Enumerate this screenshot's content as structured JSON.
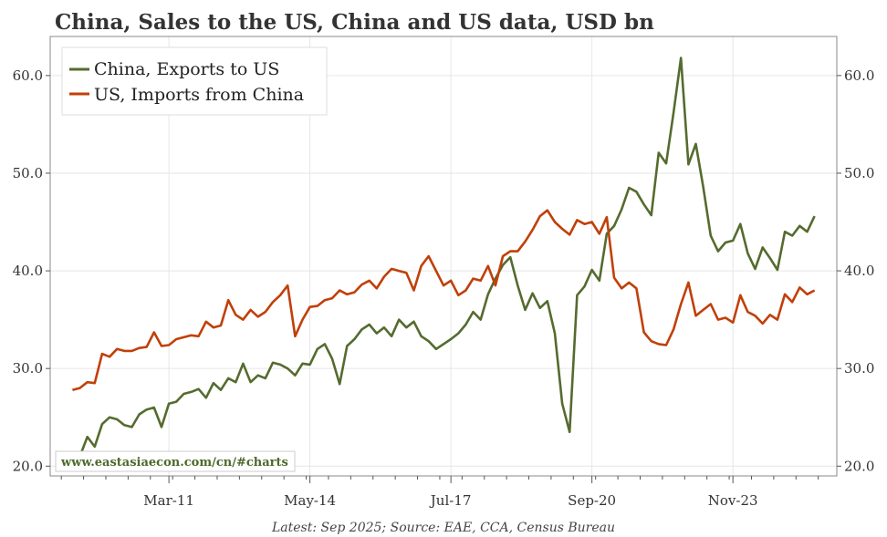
{
  "chart_data": {
    "type": "line",
    "title": "China, Sales to the US, China and US data, USD bn",
    "source": "Latest: Sep 2025; Source: EAE, CCA, Census Bureau",
    "watermark": "www.eastasiaecon.com/cn/#charts",
    "xlabel": "",
    "ylabel": "",
    "ylim": [
      19,
      64
    ],
    "y_ticks": [
      "20.0",
      "30.0",
      "40.0",
      "50.0",
      "60.0"
    ],
    "x_ticks": [
      "Mar-11",
      "May-14",
      "Jul-17",
      "Sep-20",
      "Nov-23"
    ],
    "x_range": [
      "2008-07",
      "2026-03"
    ],
    "legend_position": "top-left",
    "series": [
      {
        "name": "China, Exports to US",
        "color": "#556b2f",
        "points": [
          [
            "2009-01",
            19.8
          ],
          [
            "2009-03",
            21.0
          ],
          [
            "2009-05",
            23.0
          ],
          [
            "2009-07",
            22.0
          ],
          [
            "2009-09",
            24.3
          ],
          [
            "2009-11",
            25.0
          ],
          [
            "2010-01",
            24.8
          ],
          [
            "2010-03",
            24.2
          ],
          [
            "2010-05",
            24.0
          ],
          [
            "2010-07",
            25.3
          ],
          [
            "2010-09",
            25.8
          ],
          [
            "2010-11",
            26.0
          ],
          [
            "2011-01",
            24.0
          ],
          [
            "2011-03",
            26.4
          ],
          [
            "2011-05",
            26.6
          ],
          [
            "2011-07",
            27.4
          ],
          [
            "2011-09",
            27.6
          ],
          [
            "2011-11",
            27.9
          ],
          [
            "2012-01",
            27.0
          ],
          [
            "2012-03",
            28.5
          ],
          [
            "2012-05",
            27.8
          ],
          [
            "2012-07",
            29.0
          ],
          [
            "2012-09",
            28.6
          ],
          [
            "2012-11",
            30.5
          ],
          [
            "2013-01",
            28.6
          ],
          [
            "2013-03",
            29.3
          ],
          [
            "2013-05",
            29.0
          ],
          [
            "2013-07",
            30.6
          ],
          [
            "2013-09",
            30.4
          ],
          [
            "2013-11",
            30.0
          ],
          [
            "2014-01",
            29.3
          ],
          [
            "2014-03",
            30.5
          ],
          [
            "2014-05",
            30.4
          ],
          [
            "2014-07",
            32.0
          ],
          [
            "2014-09",
            32.5
          ],
          [
            "2014-11",
            31.0
          ],
          [
            "2015-01",
            28.4
          ],
          [
            "2015-03",
            32.3
          ],
          [
            "2015-05",
            33.0
          ],
          [
            "2015-07",
            34.0
          ],
          [
            "2015-09",
            34.5
          ],
          [
            "2015-11",
            33.6
          ],
          [
            "2016-01",
            34.2
          ],
          [
            "2016-03",
            33.3
          ],
          [
            "2016-05",
            35.0
          ],
          [
            "2016-07",
            34.2
          ],
          [
            "2016-09",
            34.8
          ],
          [
            "2016-11",
            33.3
          ],
          [
            "2017-01",
            32.8
          ],
          [
            "2017-03",
            32.0
          ],
          [
            "2017-05",
            32.5
          ],
          [
            "2017-07",
            33.0
          ],
          [
            "2017-09",
            33.6
          ],
          [
            "2017-11",
            34.5
          ],
          [
            "2018-01",
            35.8
          ],
          [
            "2018-03",
            35.0
          ],
          [
            "2018-05",
            37.6
          ],
          [
            "2018-07",
            39.2
          ],
          [
            "2018-09",
            40.6
          ],
          [
            "2018-11",
            41.4
          ],
          [
            "2019-01",
            38.5
          ],
          [
            "2019-03",
            36.0
          ],
          [
            "2019-05",
            37.7
          ],
          [
            "2019-07",
            36.2
          ],
          [
            "2019-09",
            36.9
          ],
          [
            "2019-11",
            33.6
          ],
          [
            "2020-01",
            26.4
          ],
          [
            "2020-03",
            23.5
          ],
          [
            "2020-05",
            37.5
          ],
          [
            "2020-07",
            38.4
          ],
          [
            "2020-09",
            40.1
          ],
          [
            "2020-11",
            39.0
          ],
          [
            "2021-01",
            43.8
          ],
          [
            "2021-03",
            44.6
          ],
          [
            "2021-05",
            46.3
          ],
          [
            "2021-07",
            48.5
          ],
          [
            "2021-09",
            48.1
          ],
          [
            "2021-11",
            46.8
          ],
          [
            "2022-01",
            45.7
          ],
          [
            "2022-03",
            52.1
          ],
          [
            "2022-05",
            51.0
          ],
          [
            "2022-07",
            56.2
          ],
          [
            "2022-09",
            61.8
          ],
          [
            "2022-11",
            50.9
          ],
          [
            "2023-01",
            53.0
          ],
          [
            "2023-03",
            48.6
          ],
          [
            "2023-05",
            43.6
          ],
          [
            "2023-07",
            42.0
          ],
          [
            "2023-09",
            42.9
          ],
          [
            "2023-11",
            43.1
          ],
          [
            "2024-01",
            44.8
          ],
          [
            "2024-03",
            41.8
          ],
          [
            "2024-05",
            40.2
          ],
          [
            "2024-07",
            42.4
          ],
          [
            "2024-09",
            41.3
          ],
          [
            "2024-11",
            40.1
          ],
          [
            "2025-01",
            44.0
          ],
          [
            "2025-03",
            43.6
          ],
          [
            "2025-05",
            44.6
          ],
          [
            "2025-07",
            44.0
          ],
          [
            "2025-09",
            45.6
          ]
        ]
      },
      {
        "name": "US, Imports from China",
        "color": "#c0400a",
        "points": [
          [
            "2009-01",
            27.8
          ],
          [
            "2009-03",
            28.0
          ],
          [
            "2009-05",
            28.6
          ],
          [
            "2009-07",
            28.5
          ],
          [
            "2009-09",
            31.5
          ],
          [
            "2009-11",
            31.2
          ],
          [
            "2010-01",
            32.0
          ],
          [
            "2010-03",
            31.8
          ],
          [
            "2010-05",
            31.8
          ],
          [
            "2010-07",
            32.1
          ],
          [
            "2010-09",
            32.2
          ],
          [
            "2010-11",
            33.7
          ],
          [
            "2011-01",
            32.3
          ],
          [
            "2011-03",
            32.4
          ],
          [
            "2011-05",
            33.0
          ],
          [
            "2011-07",
            33.2
          ],
          [
            "2011-09",
            33.4
          ],
          [
            "2011-11",
            33.3
          ],
          [
            "2012-01",
            34.8
          ],
          [
            "2012-03",
            34.2
          ],
          [
            "2012-05",
            34.4
          ],
          [
            "2012-07",
            37.0
          ],
          [
            "2012-09",
            35.5
          ],
          [
            "2012-11",
            35.0
          ],
          [
            "2013-01",
            36.0
          ],
          [
            "2013-03",
            35.3
          ],
          [
            "2013-05",
            35.8
          ],
          [
            "2013-07",
            36.8
          ],
          [
            "2013-09",
            37.5
          ],
          [
            "2013-11",
            38.5
          ],
          [
            "2014-01",
            33.3
          ],
          [
            "2014-03",
            35.0
          ],
          [
            "2014-05",
            36.3
          ],
          [
            "2014-07",
            36.4
          ],
          [
            "2014-09",
            37.0
          ],
          [
            "2014-11",
            37.2
          ],
          [
            "2015-01",
            38.0
          ],
          [
            "2015-03",
            37.6
          ],
          [
            "2015-05",
            37.8
          ],
          [
            "2015-07",
            38.6
          ],
          [
            "2015-09",
            39.0
          ],
          [
            "2015-11",
            38.2
          ],
          [
            "2016-01",
            39.4
          ],
          [
            "2016-03",
            40.2
          ],
          [
            "2016-05",
            40.0
          ],
          [
            "2016-07",
            39.8
          ],
          [
            "2016-09",
            38.0
          ],
          [
            "2016-11",
            40.5
          ],
          [
            "2017-01",
            41.5
          ],
          [
            "2017-03",
            40.0
          ],
          [
            "2017-05",
            38.5
          ],
          [
            "2017-07",
            39.0
          ],
          [
            "2017-09",
            37.5
          ],
          [
            "2017-11",
            38.0
          ],
          [
            "2018-01",
            39.2
          ],
          [
            "2018-03",
            39.0
          ],
          [
            "2018-05",
            40.5
          ],
          [
            "2018-07",
            38.5
          ],
          [
            "2018-09",
            41.5
          ],
          [
            "2018-11",
            42.0
          ],
          [
            "2019-01",
            42.0
          ],
          [
            "2019-03",
            43.0
          ],
          [
            "2019-05",
            44.2
          ],
          [
            "2019-07",
            45.6
          ],
          [
            "2019-09",
            46.2
          ],
          [
            "2019-11",
            45.0
          ],
          [
            "2020-01",
            44.3
          ],
          [
            "2020-03",
            43.7
          ],
          [
            "2020-05",
            45.2
          ],
          [
            "2020-07",
            44.8
          ],
          [
            "2020-09",
            45.0
          ],
          [
            "2020-11",
            43.8
          ],
          [
            "2021-01",
            45.5
          ],
          [
            "2021-03",
            39.3
          ],
          [
            "2021-05",
            38.2
          ],
          [
            "2021-07",
            38.8
          ],
          [
            "2021-09",
            38.2
          ],
          [
            "2021-11",
            33.7
          ],
          [
            "2022-01",
            32.8
          ],
          [
            "2022-03",
            32.5
          ],
          [
            "2022-05",
            32.4
          ],
          [
            "2022-07",
            34.0
          ],
          [
            "2022-09",
            36.6
          ],
          [
            "2022-11",
            38.8
          ],
          [
            "2023-01",
            35.4
          ],
          [
            "2023-03",
            36.0
          ],
          [
            "2023-05",
            36.6
          ],
          [
            "2023-07",
            35.0
          ],
          [
            "2023-09",
            35.2
          ],
          [
            "2023-11",
            34.7
          ],
          [
            "2024-01",
            37.5
          ],
          [
            "2024-03",
            35.8
          ],
          [
            "2024-05",
            35.4
          ],
          [
            "2024-07",
            34.6
          ],
          [
            "2024-09",
            35.5
          ],
          [
            "2024-11",
            35.0
          ],
          [
            "2025-01",
            37.6
          ],
          [
            "2025-03",
            36.8
          ],
          [
            "2025-05",
            38.3
          ],
          [
            "2025-07",
            37.6
          ],
          [
            "2025-09",
            38.0
          ]
        ]
      }
    ]
  }
}
